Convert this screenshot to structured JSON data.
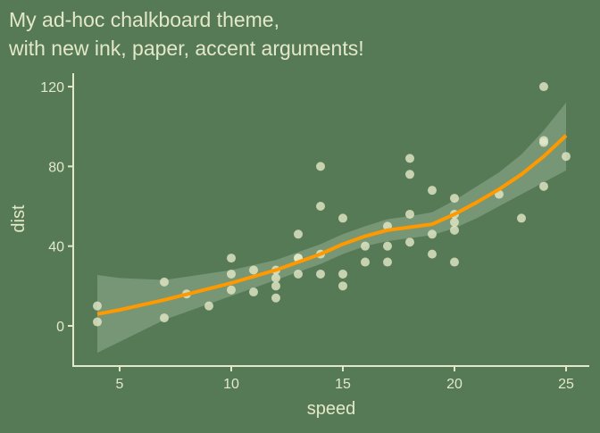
{
  "colors": {
    "paper": "#567a56",
    "ink": "#e3e8c8",
    "accent": "#ff9900",
    "band": "#8ea88a"
  },
  "chart_data": {
    "type": "scatter",
    "title_line1": "My ad-hoc chalkboard theme,",
    "title_line2": "with new ink, paper, accent arguments!",
    "xlabel": "speed",
    "ylabel": "dist",
    "xlim": [
      3.5,
      26
    ],
    "ylim": [
      -20,
      128
    ],
    "xticks": [
      5,
      10,
      15,
      20,
      25
    ],
    "yticks": [
      0,
      40,
      80,
      120
    ],
    "grid": false,
    "points": {
      "x": [
        4,
        4,
        7,
        7,
        8,
        9,
        10,
        10,
        10,
        11,
        11,
        12,
        12,
        12,
        12,
        13,
        13,
        13,
        13,
        14,
        14,
        14,
        14,
        15,
        15,
        15,
        16,
        16,
        17,
        17,
        17,
        18,
        18,
        18,
        18,
        19,
        19,
        19,
        20,
        20,
        20,
        20,
        20,
        22,
        23,
        24,
        24,
        24,
        24,
        25
      ],
      "y": [
        2,
        10,
        4,
        22,
        16,
        10,
        18,
        26,
        34,
        17,
        28,
        14,
        20,
        24,
        28,
        26,
        34,
        34,
        46,
        26,
        36,
        60,
        80,
        20,
        26,
        54,
        32,
        40,
        32,
        40,
        50,
        42,
        56,
        76,
        84,
        36,
        46,
        68,
        32,
        48,
        52,
        56,
        64,
        66,
        54,
        70,
        92,
        93,
        120,
        85
      ]
    },
    "smooth": {
      "method": "loess",
      "x": [
        4,
        5,
        7,
        10,
        12,
        14,
        15,
        16,
        17,
        18,
        19,
        20,
        21,
        22,
        23,
        24,
        25
      ],
      "fit": [
        5.9,
        8,
        13,
        21.5,
        28,
        36,
        41,
        45,
        48,
        49.5,
        51,
        56,
        62,
        68.5,
        76,
        85,
        95.5
      ],
      "lower": [
        -13.5,
        -8,
        3,
        15,
        23,
        31,
        36,
        40,
        42.5,
        44,
        45.5,
        49,
        54,
        60,
        66,
        72,
        78
      ],
      "upper": [
        25.5,
        24,
        23,
        28,
        33,
        41,
        46,
        50,
        53.5,
        55,
        57,
        63,
        70,
        77,
        86,
        98,
        112
      ]
    }
  }
}
